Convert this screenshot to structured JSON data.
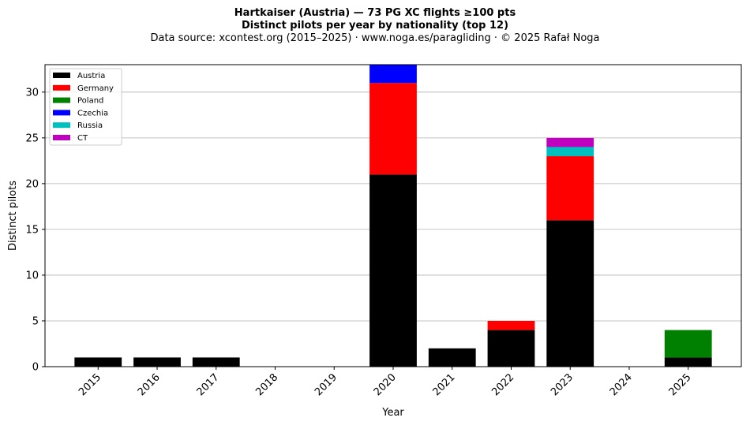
{
  "chart_data": {
    "type": "bar",
    "stacked": true,
    "title": "Hartkaiser (Austria)  —  73 PG XC flights ≥100 pts",
    "subtitle": "Distinct pilots per year by nationality (top 12)",
    "source": "Data source: xcontest.org (2015–2025)  ·  www.noga.es/paragliding  ·  © 2025 Rafał Noga",
    "xlabel": "Year",
    "ylabel": "Distinct pilots",
    "categories": [
      "2015",
      "2016",
      "2017",
      "2018",
      "2019",
      "2020",
      "2021",
      "2022",
      "2023",
      "2024",
      "2025"
    ],
    "ylim": [
      0,
      33
    ],
    "yticks": [
      0,
      5,
      10,
      15,
      20,
      25,
      30
    ],
    "grid": "y",
    "legend_position": "top-left",
    "series": [
      {
        "name": "Austria",
        "color": "#000000",
        "values": [
          1,
          1,
          1,
          0,
          0,
          21,
          2,
          4,
          16,
          0,
          1
        ]
      },
      {
        "name": "Germany",
        "color": "#ff0000",
        "values": [
          0,
          0,
          0,
          0,
          0,
          10,
          0,
          1,
          7,
          0,
          0
        ]
      },
      {
        "name": "Poland",
        "color": "#008000",
        "values": [
          0,
          0,
          0,
          0,
          0,
          0,
          0,
          0,
          0,
          0,
          3
        ]
      },
      {
        "name": "Czechia",
        "color": "#0000ff",
        "values": [
          0,
          0,
          0,
          0,
          0,
          2,
          0,
          0,
          0,
          0,
          0
        ]
      },
      {
        "name": "Russia",
        "color": "#00bfbf",
        "values": [
          0,
          0,
          0,
          0,
          0,
          0,
          0,
          0,
          1,
          0,
          0
        ]
      },
      {
        "name": "CT",
        "color": "#bf00bf",
        "values": [
          0,
          0,
          0,
          0,
          0,
          0,
          0,
          0,
          1,
          0,
          0
        ]
      }
    ]
  }
}
